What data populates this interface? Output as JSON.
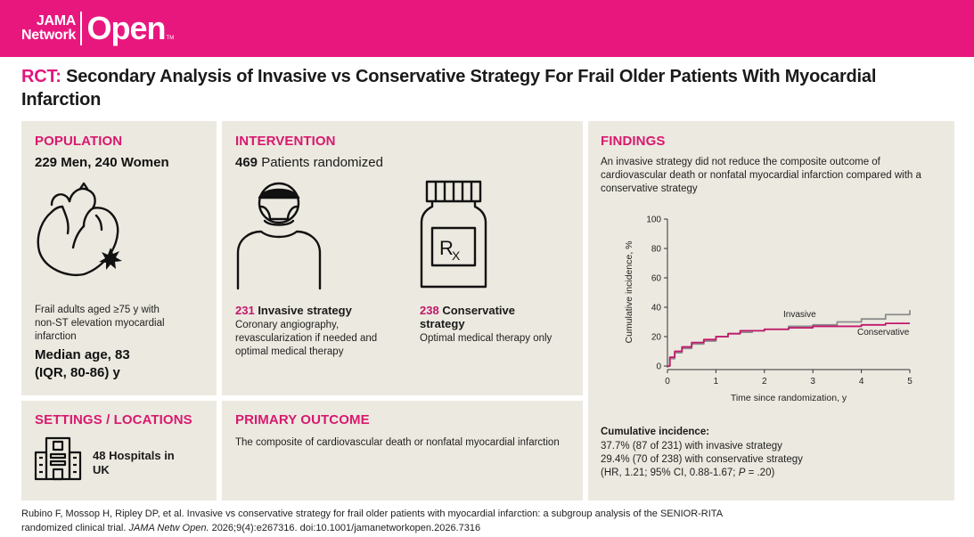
{
  "header": {
    "brand_small_1": "JAMA",
    "brand_small_2": "Network",
    "brand_big": "Open",
    "brand_tm": "TM",
    "color": "#e8177e"
  },
  "title": {
    "tag": "RCT:",
    "text": " Secondary Analysis of Invasive vs Conservative Strategy For Frail Older Patients With Myocardial Infarction"
  },
  "population": {
    "heading": "POPULATION",
    "counts": "229 Men, 240 Women",
    "description": "Frail adults aged ≥75 y with non-ST elevation myocardial infarction",
    "median_age": "Median age, 83",
    "iqr": "(IQR, 80-86) y",
    "icon": "heart-icon"
  },
  "intervention": {
    "heading": "INTERVENTION",
    "randomized_num": "469",
    "randomized_label": " Patients randomized",
    "invasive": {
      "num": "231",
      "label": " Invasive strategy",
      "description": "Coronary angiography, revascularization if needed and optimal medical therapy",
      "icon": "surgeon-icon"
    },
    "conservative": {
      "num": "238",
      "label": " Conservative strategy",
      "description": "Optimal medical therapy only",
      "icon": "rx-bottle-icon"
    }
  },
  "findings": {
    "heading": "FINDINGS",
    "summary": "An invasive strategy did not reduce the composite outcome of cardiovascular death or nonfatal myocardial infarction compared with a conservative strategy",
    "results_heading": "Cumulative incidence:",
    "result_invasive": "37.7% (87 of 231) with invasive strategy",
    "result_conservative": "29.4% (70 of 238) with conservative strategy",
    "result_hr_prefix": "(HR, 1.21; 95% CI, 0.88-1.67; ",
    "result_hr_p": "P",
    "result_hr_suffix": " = .20)"
  },
  "settings": {
    "heading": "SETTINGS / LOCATIONS",
    "sites": "48 Hospitals in UK",
    "icon": "hospital-icon"
  },
  "primary_outcome": {
    "heading": "PRIMARY OUTCOME",
    "text": "The composite of cardiovascular death or nonfatal myocardial infarction"
  },
  "citation": {
    "line1": "Rubino F, Mossop H, Ripley DP, et al. Invasive vs conservative strategy for frail older patients with myocardial infarction: a subgroup analysis of the SENIOR-RITA",
    "line2_prefix": "randomized clinical trial. ",
    "journal": "JAMA Netw Open.",
    "line2_suffix": " 2026;9(4):e267316. doi:10.1001/jamanetworkopen.2026.7316"
  },
  "chart_data": {
    "type": "line",
    "xlabel": "Time since randomization, y",
    "ylabel": "Cumulative incidence, %",
    "xlim": [
      0,
      5
    ],
    "ylim": [
      0,
      100
    ],
    "xticks": [
      0,
      1,
      2,
      3,
      4,
      5
    ],
    "yticks": [
      0,
      20,
      40,
      60,
      80,
      100
    ],
    "grid": false,
    "series": [
      {
        "name": "Invasive",
        "color": "#8c8c8c",
        "x": [
          0,
          0.05,
          0.15,
          0.3,
          0.5,
          0.75,
          1.0,
          1.25,
          1.5,
          1.75,
          2.0,
          2.5,
          3.0,
          3.5,
          4.0,
          4.5,
          5.0
        ],
        "y": [
          0,
          5,
          9,
          12,
          15,
          17,
          20,
          22,
          23,
          24,
          25,
          27,
          28,
          30,
          32,
          35,
          38
        ]
      },
      {
        "name": "Conservative",
        "color": "#c2186b",
        "x": [
          0,
          0.05,
          0.15,
          0.3,
          0.5,
          0.75,
          1.0,
          1.25,
          1.5,
          1.75,
          2.0,
          2.5,
          3.0,
          3.5,
          4.0,
          4.5,
          5.0
        ],
        "y": [
          0,
          6,
          10,
          13,
          16,
          18,
          20,
          22,
          24,
          24,
          25,
          26,
          27,
          27,
          28,
          29,
          29
        ]
      }
    ]
  }
}
